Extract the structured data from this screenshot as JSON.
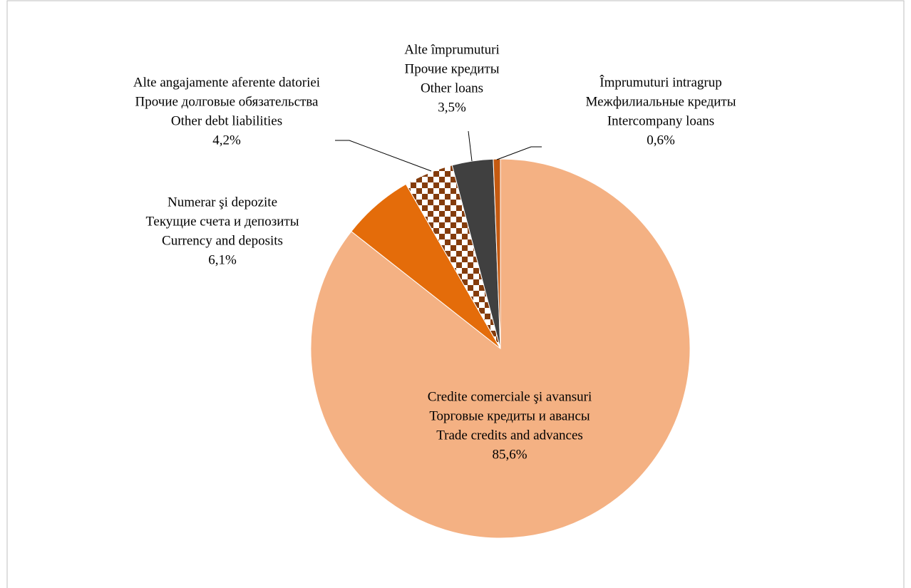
{
  "chart_data": {
    "type": "pie",
    "categories": [
      [
        "Credite comerciale şi avansuri",
        "Торговые кредиты и авансы",
        "Trade credits and advances"
      ],
      [
        "Numerar şi depozite",
        "Текущие счета и депозиты",
        "Currency and deposits"
      ],
      [
        "Alte angajamente aferente datoriei",
        "Прочие долговые обязательства",
        "Other debt liabilities"
      ],
      [
        "Alte împrumuturi",
        "Прочие кредиты",
        "Other loans"
      ],
      [
        "Împrumuturi intragrup",
        "Межфилиальные кредиты",
        "Intercompany loans"
      ]
    ],
    "values": [
      85.6,
      6.1,
      4.2,
      3.5,
      0.6
    ],
    "value_labels": [
      "85,6%",
      "6,1%",
      "4,2%",
      "3,5%",
      "0,6%"
    ],
    "colors": [
      "#F4B183",
      "#E46C0A",
      "pattern",
      "#404040",
      "#C55A11"
    ]
  }
}
